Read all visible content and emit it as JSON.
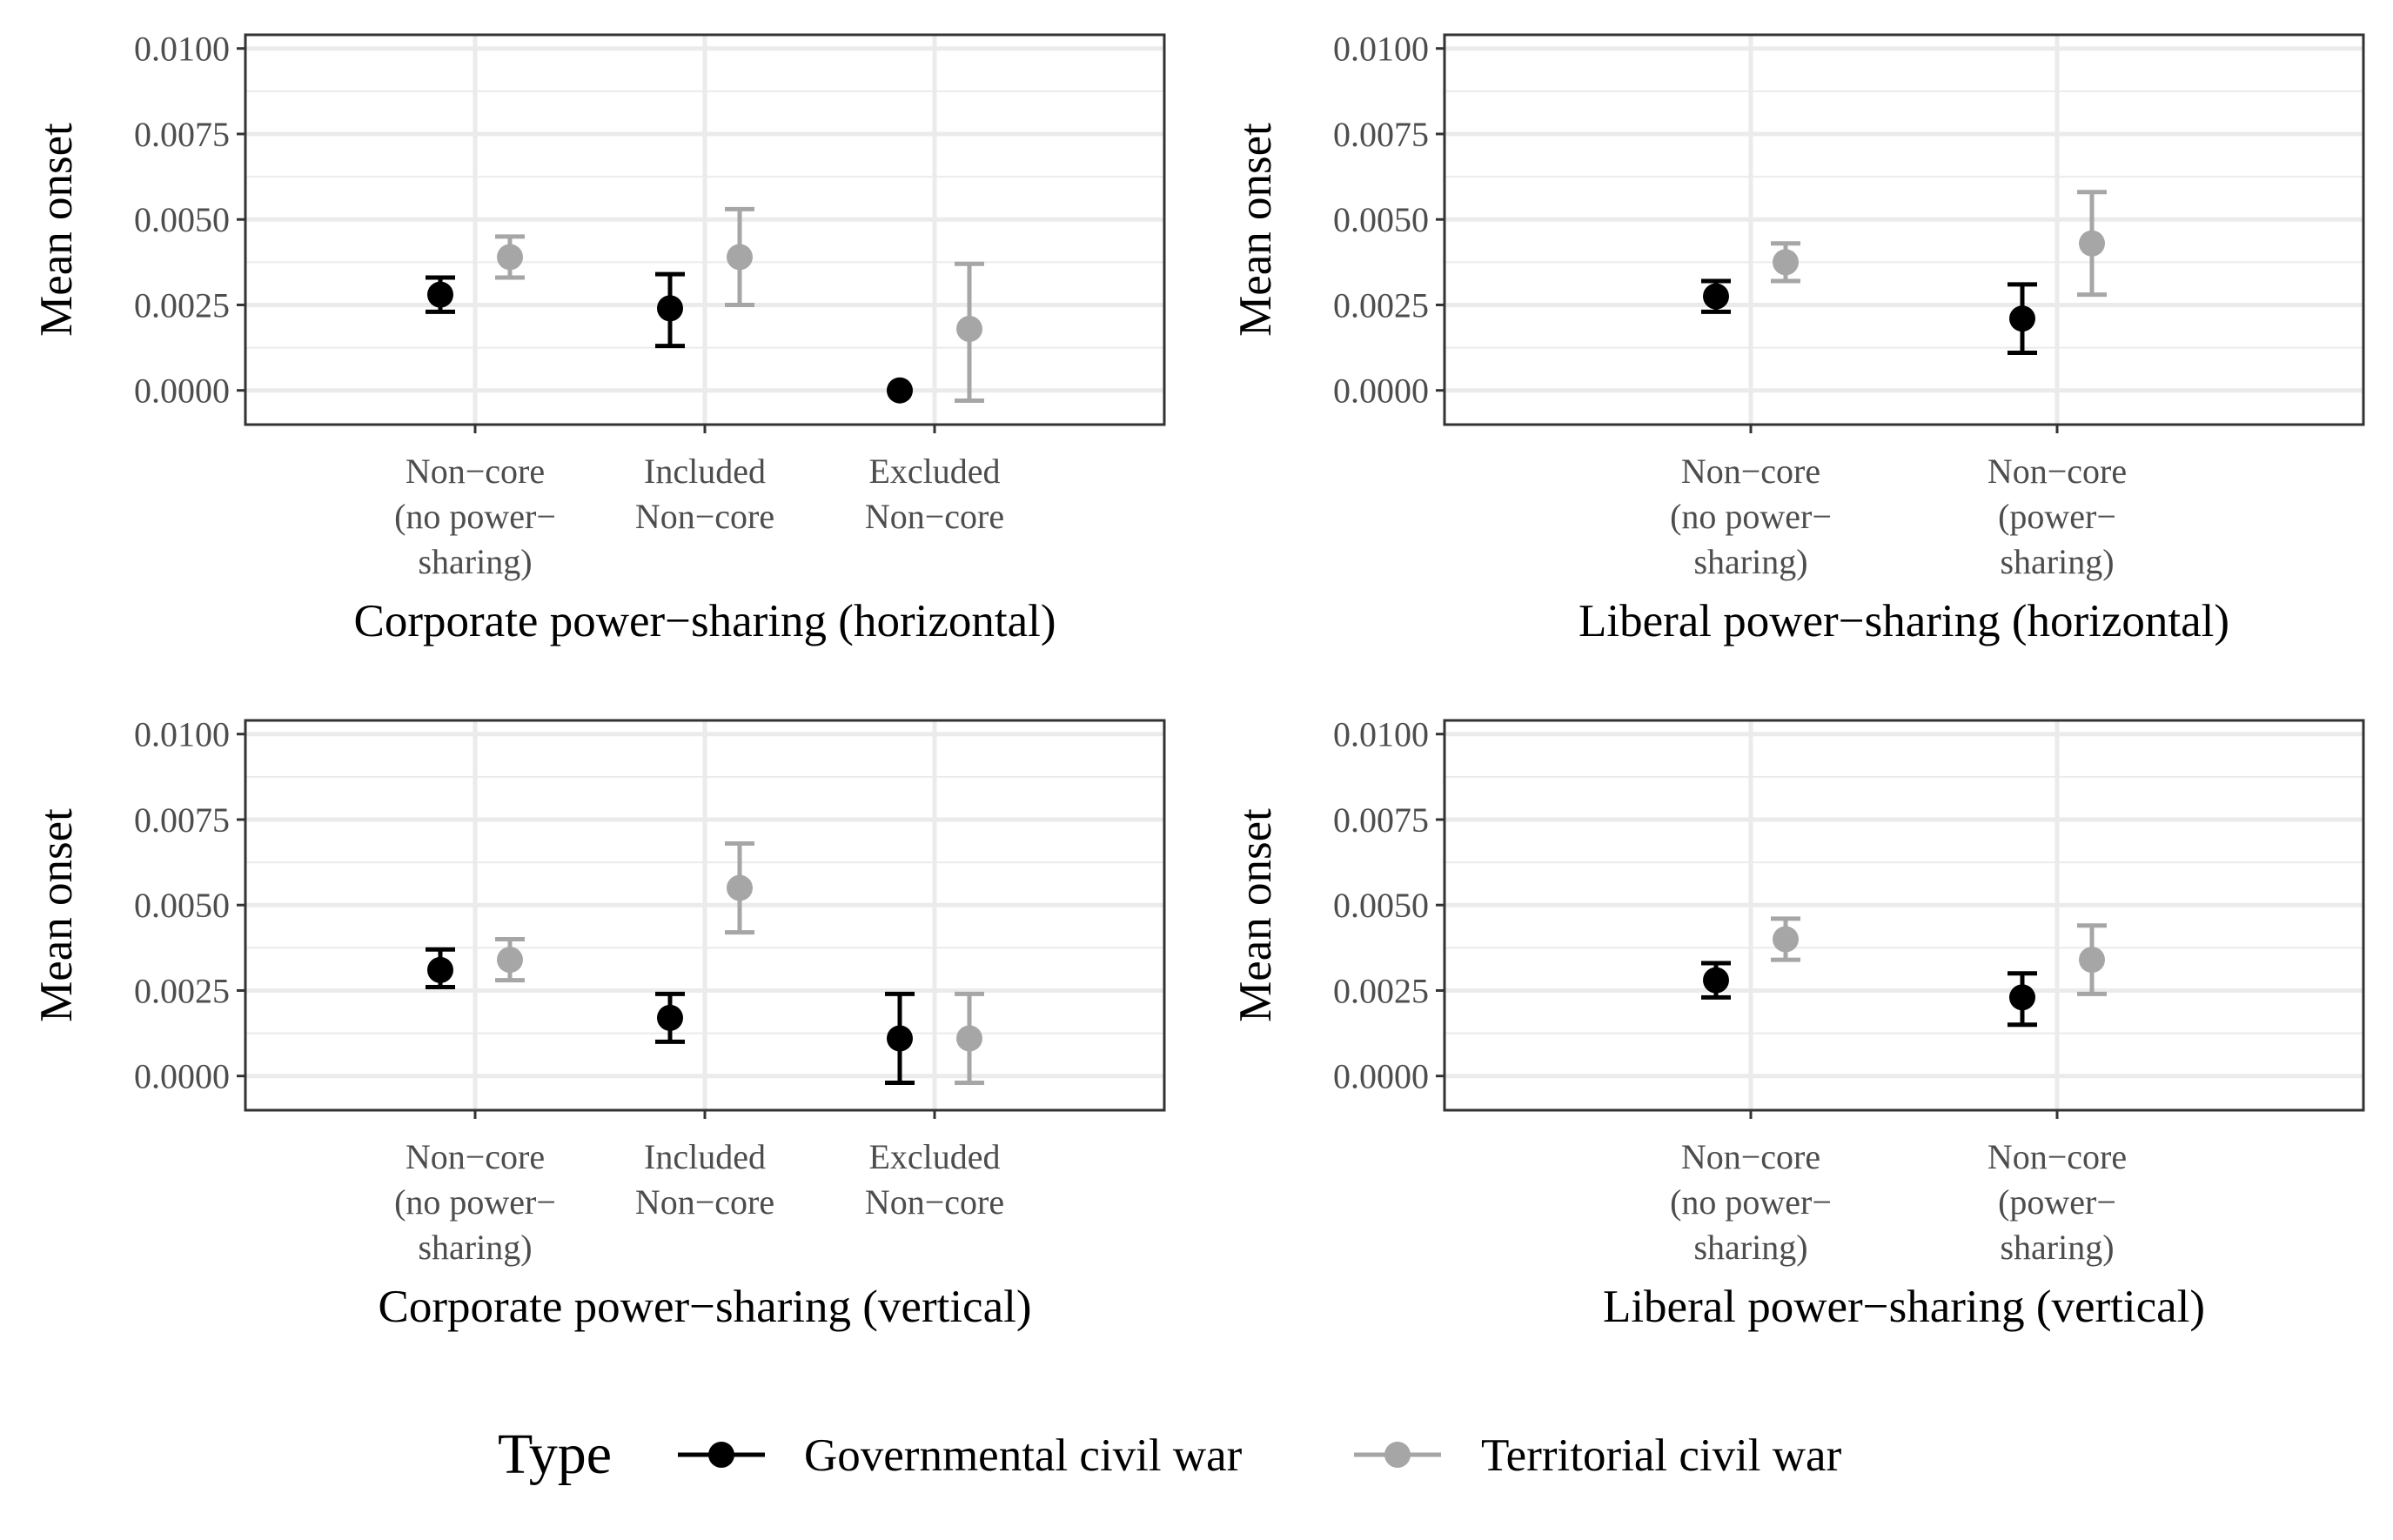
{
  "chart_data": [
    {
      "type": "scatter",
      "subtype": "point-errorbar",
      "xlabel": "Corporate power−sharing (horizontal)",
      "ylabel": "Mean onset",
      "ylim": [
        -0.001,
        0.0104
      ],
      "yticks": [
        "0.0000",
        "0.0025",
        "0.0050",
        "0.0075",
        "0.0100"
      ],
      "categories": [
        [
          "Non−core",
          "(no power−",
          "sharing)"
        ],
        [
          "Included",
          "Non−core"
        ],
        [
          "Excluded",
          "Non−core"
        ]
      ],
      "series": [
        {
          "name": "Governmental civil war",
          "values": [
            0.0028,
            0.0024,
            0.0
          ],
          "lower": [
            0.0023,
            0.0013,
            0.0
          ],
          "upper": [
            0.0033,
            0.0034,
            0.0
          ]
        },
        {
          "name": "Territorial civil war",
          "values": [
            0.0039,
            0.0039,
            0.0018
          ],
          "lower": [
            0.0033,
            0.0025,
            -0.0003
          ],
          "upper": [
            0.0045,
            0.0053,
            0.0037
          ]
        }
      ]
    },
    {
      "type": "scatter",
      "subtype": "point-errorbar",
      "xlabel": "Liberal power−sharing (horizontal)",
      "ylabel": "Mean onset",
      "ylim": [
        -0.001,
        0.0104
      ],
      "yticks": [
        "0.0000",
        "0.0025",
        "0.0050",
        "0.0075",
        "0.0100"
      ],
      "categories": [
        [
          "Non−core",
          "(no power−",
          "sharing)"
        ],
        [
          "Non−core",
          "(power−",
          "sharing)"
        ]
      ],
      "series": [
        {
          "name": "Governmental civil war",
          "values": [
            0.00275,
            0.0021
          ],
          "lower": [
            0.0023,
            0.0011
          ],
          "upper": [
            0.0032,
            0.0031
          ]
        },
        {
          "name": "Territorial civil war",
          "values": [
            0.00375,
            0.0043
          ],
          "lower": [
            0.0032,
            0.0028
          ],
          "upper": [
            0.0043,
            0.0058
          ]
        }
      ]
    },
    {
      "type": "scatter",
      "subtype": "point-errorbar",
      "xlabel": "Corporate power−sharing (vertical)",
      "ylabel": "Mean onset",
      "ylim": [
        -0.001,
        0.0104
      ],
      "yticks": [
        "0.0000",
        "0.0025",
        "0.0050",
        "0.0075",
        "0.0100"
      ],
      "categories": [
        [
          "Non−core",
          "(no power−",
          "sharing)"
        ],
        [
          "Included",
          "Non−core"
        ],
        [
          "Excluded",
          "Non−core"
        ]
      ],
      "series": [
        {
          "name": "Governmental civil war",
          "values": [
            0.0031,
            0.0017,
            0.0011
          ],
          "lower": [
            0.0026,
            0.001,
            -0.0002
          ],
          "upper": [
            0.0037,
            0.0024,
            0.0024
          ]
        },
        {
          "name": "Territorial civil war",
          "values": [
            0.0034,
            0.0055,
            0.0011
          ],
          "lower": [
            0.0028,
            0.0042,
            -0.0002
          ],
          "upper": [
            0.004,
            0.0068,
            0.0024
          ]
        }
      ]
    },
    {
      "type": "scatter",
      "subtype": "point-errorbar",
      "xlabel": "Liberal power−sharing (vertical)",
      "ylabel": "Mean onset",
      "ylim": [
        -0.001,
        0.0104
      ],
      "yticks": [
        "0.0000",
        "0.0025",
        "0.0050",
        "0.0075",
        "0.0100"
      ],
      "categories": [
        [
          "Non−core",
          "(no power−",
          "sharing)"
        ],
        [
          "Non−core",
          "(power−",
          "sharing)"
        ]
      ],
      "series": [
        {
          "name": "Governmental civil war",
          "values": [
            0.0028,
            0.0023
          ],
          "lower": [
            0.0023,
            0.0015
          ],
          "upper": [
            0.0033,
            0.003
          ]
        },
        {
          "name": "Territorial civil war",
          "values": [
            0.004,
            0.0034
          ],
          "lower": [
            0.0034,
            0.0024
          ],
          "upper": [
            0.0046,
            0.0044
          ]
        }
      ]
    }
  ],
  "legend": {
    "title": "Type",
    "items": [
      {
        "label": "Governmental civil war",
        "color": "#000000"
      },
      {
        "label": "Territorial civil war",
        "color": "#a6a6a6"
      }
    ]
  },
  "colors": {
    "panel_border": "#333333",
    "grid": "#ebebeb",
    "tick_text": "#4d4d4d",
    "series": [
      "#000000",
      "#a6a6a6"
    ]
  }
}
